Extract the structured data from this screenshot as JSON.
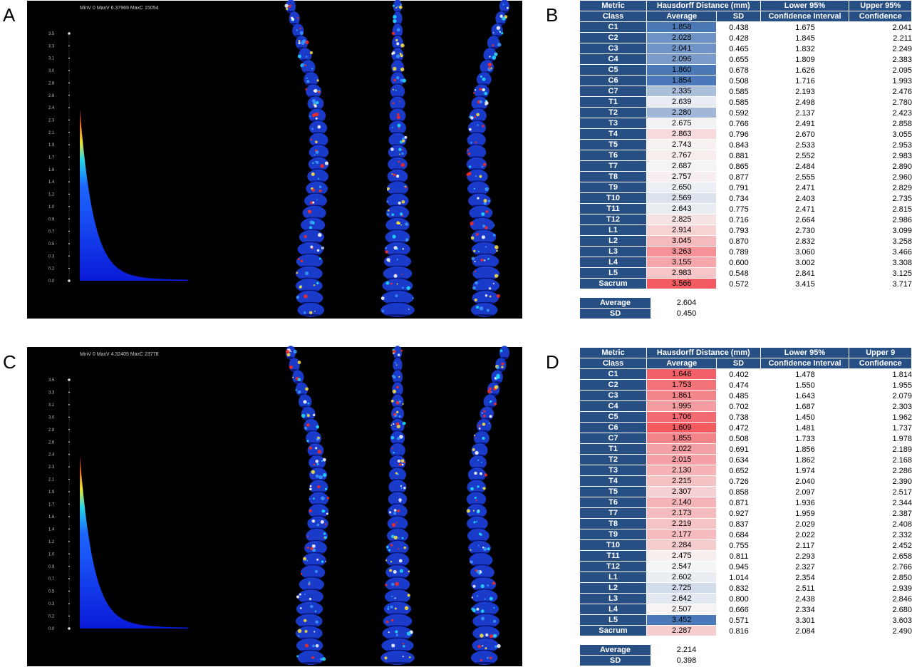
{
  "panels": {
    "A": {
      "letter": "A",
      "header": "MinV 0 MaxV 6.37969 MaxC 15054",
      "scale_labels": [
        "3.5",
        "3.3",
        "3.1",
        "3.0",
        "2.8",
        "2.6",
        "2.4",
        "2.3",
        "2.1",
        "1.9",
        "1.7",
        "1.6",
        "1.4",
        "1.2",
        "1.0",
        "0.9",
        "0.7",
        "0.5",
        "0.3",
        "0.2",
        "0.0"
      ]
    },
    "B": {
      "letter": "B",
      "headers": {
        "metric": "Metric",
        "hausdorff": "Hausdorff Distance (mm)",
        "lower": "Lower 95%",
        "upper": "Upper 95%",
        "class": "Class",
        "average": "Average",
        "sd": "SD",
        "lower2": "Confidence Interval",
        "upper2": "Confidence"
      },
      "rows": [
        {
          "cls": "C1",
          "avg": "1.858",
          "sd": "0.438",
          "lo": "1.675",
          "up": "2.041"
        },
        {
          "cls": "C2",
          "avg": "2.028",
          "sd": "0.428",
          "lo": "1.845",
          "up": "2.211"
        },
        {
          "cls": "C3",
          "avg": "2.041",
          "sd": "0.465",
          "lo": "1.832",
          "up": "2.249"
        },
        {
          "cls": "C4",
          "avg": "2.096",
          "sd": "0.655",
          "lo": "1.809",
          "up": "2.383"
        },
        {
          "cls": "C5",
          "avg": "1.860",
          "sd": "0.678",
          "lo": "1.626",
          "up": "2.095"
        },
        {
          "cls": "C6",
          "avg": "1.854",
          "sd": "0.508",
          "lo": "1.716",
          "up": "1.993"
        },
        {
          "cls": "C7",
          "avg": "2.335",
          "sd": "0.585",
          "lo": "2.193",
          "up": "2.476"
        },
        {
          "cls": "T1",
          "avg": "2.639",
          "sd": "0.585",
          "lo": "2.498",
          "up": "2.780"
        },
        {
          "cls": "T2",
          "avg": "2.280",
          "sd": "0.592",
          "lo": "2.137",
          "up": "2.423"
        },
        {
          "cls": "T3",
          "avg": "2.675",
          "sd": "0.766",
          "lo": "2.491",
          "up": "2.858"
        },
        {
          "cls": "T4",
          "avg": "2.863",
          "sd": "0.796",
          "lo": "2.670",
          "up": "3.055"
        },
        {
          "cls": "T5",
          "avg": "2.743",
          "sd": "0.843",
          "lo": "2.533",
          "up": "2.953"
        },
        {
          "cls": "T6",
          "avg": "2.767",
          "sd": "0.881",
          "lo": "2.552",
          "up": "2.983"
        },
        {
          "cls": "T7",
          "avg": "2.687",
          "sd": "0.865",
          "lo": "2.484",
          "up": "2.890"
        },
        {
          "cls": "T8",
          "avg": "2.757",
          "sd": "0.877",
          "lo": "2.555",
          "up": "2.960"
        },
        {
          "cls": "T9",
          "avg": "2.650",
          "sd": "0.791",
          "lo": "2.471",
          "up": "2.829"
        },
        {
          "cls": "T10",
          "avg": "2.569",
          "sd": "0.734",
          "lo": "2.403",
          "up": "2.735"
        },
        {
          "cls": "T11",
          "avg": "2.643",
          "sd": "0.775",
          "lo": "2.471",
          "up": "2.815"
        },
        {
          "cls": "T12",
          "avg": "2.825",
          "sd": "0.716",
          "lo": "2.664",
          "up": "2.986"
        },
        {
          "cls": "L1",
          "avg": "2.914",
          "sd": "0.793",
          "lo": "2.730",
          "up": "3.099"
        },
        {
          "cls": "L2",
          "avg": "3.045",
          "sd": "0.870",
          "lo": "2.832",
          "up": "3.258"
        },
        {
          "cls": "L3",
          "avg": "3.263",
          "sd": "0.789",
          "lo": "3.060",
          "up": "3.466"
        },
        {
          "cls": "L4",
          "avg": "3.155",
          "sd": "0.600",
          "lo": "3.002",
          "up": "3.308"
        },
        {
          "cls": "L5",
          "avg": "2.983",
          "sd": "0.548",
          "lo": "2.841",
          "up": "3.125"
        },
        {
          "cls": "Sacrum",
          "avg": "3.566",
          "sd": "0.572",
          "lo": "3.415",
          "up": "3.717"
        }
      ],
      "summary": {
        "avg_label": "Average",
        "avg": "2.604",
        "sd_label": "SD",
        "sd": "0.450"
      }
    },
    "C": {
      "letter": "C",
      "header": "MinV 0 MaxV 4.32405 MaxC 23778",
      "scale_labels": [
        "3.5",
        "3.3",
        "3.1",
        "3.0",
        "2.8",
        "2.6",
        "2.4",
        "2.3",
        "2.1",
        "1.9",
        "1.7",
        "1.6",
        "1.4",
        "1.2",
        "1.0",
        "0.9",
        "0.7",
        "0.5",
        "0.3",
        "0.2",
        "0.0"
      ]
    },
    "D": {
      "letter": "D",
      "headers": {
        "metric": "Metric",
        "hausdorff": "Hausdorff Distance (mm)",
        "lower": "Lower 95%",
        "upper": "Upper 9",
        "class": "Class",
        "average": "Average",
        "sd": "SD",
        "lower2": "Confidence Interval",
        "upper2": "Confidence"
      },
      "rows": [
        {
          "cls": "C1",
          "avg": "1.646",
          "sd": "0.402",
          "lo": "1.478",
          "up": "1.814"
        },
        {
          "cls": "C2",
          "avg": "1.753",
          "sd": "0.474",
          "lo": "1.550",
          "up": "1.955"
        },
        {
          "cls": "C3",
          "avg": "1.861",
          "sd": "0.485",
          "lo": "1.643",
          "up": "2.079"
        },
        {
          "cls": "C4",
          "avg": "1.995",
          "sd": "0.702",
          "lo": "1.687",
          "up": "2.303"
        },
        {
          "cls": "C5",
          "avg": "1.706",
          "sd": "0.738",
          "lo": "1.450",
          "up": "1.962"
        },
        {
          "cls": "C6",
          "avg": "1.609",
          "sd": "0.472",
          "lo": "1.481",
          "up": "1.737"
        },
        {
          "cls": "C7",
          "avg": "1.855",
          "sd": "0.508",
          "lo": "1.733",
          "up": "1.978"
        },
        {
          "cls": "T1",
          "avg": "2.022",
          "sd": "0.691",
          "lo": "1.856",
          "up": "2.189"
        },
        {
          "cls": "T2",
          "avg": "2.015",
          "sd": "0.634",
          "lo": "1.862",
          "up": "2.168"
        },
        {
          "cls": "T3",
          "avg": "2.130",
          "sd": "0.652",
          "lo": "1.974",
          "up": "2.286"
        },
        {
          "cls": "T4",
          "avg": "2.215",
          "sd": "0.726",
          "lo": "2.040",
          "up": "2.390"
        },
        {
          "cls": "T5",
          "avg": "2.307",
          "sd": "0.858",
          "lo": "2.097",
          "up": "2.517"
        },
        {
          "cls": "T6",
          "avg": "2.140",
          "sd": "0.871",
          "lo": "1.936",
          "up": "2.344"
        },
        {
          "cls": "T7",
          "avg": "2.173",
          "sd": "0.927",
          "lo": "1.959",
          "up": "2.387"
        },
        {
          "cls": "T8",
          "avg": "2.219",
          "sd": "0.837",
          "lo": "2.029",
          "up": "2.408"
        },
        {
          "cls": "T9",
          "avg": "2.177",
          "sd": "0.684",
          "lo": "2.022",
          "up": "2.332"
        },
        {
          "cls": "T10",
          "avg": "2.284",
          "sd": "0.755",
          "lo": "2.117",
          "up": "2.452"
        },
        {
          "cls": "T11",
          "avg": "2.475",
          "sd": "0.811",
          "lo": "2.293",
          "up": "2.658"
        },
        {
          "cls": "T12",
          "avg": "2.547",
          "sd": "0.945",
          "lo": "2.327",
          "up": "2.766"
        },
        {
          "cls": "L1",
          "avg": "2.602",
          "sd": "1.014",
          "lo": "2.354",
          "up": "2.850"
        },
        {
          "cls": "L2",
          "avg": "2.725",
          "sd": "0.832",
          "lo": "2.511",
          "up": "2.939"
        },
        {
          "cls": "L3",
          "avg": "2.642",
          "sd": "0.800",
          "lo": "2.438",
          "up": "2.846"
        },
        {
          "cls": "L4",
          "avg": "2.507",
          "sd": "0.666",
          "lo": "2.334",
          "up": "2.680"
        },
        {
          "cls": "L5",
          "avg": "3.452",
          "sd": "0.571",
          "lo": "3.301",
          "up": "3.603"
        },
        {
          "cls": "Sacrum",
          "avg": "2.287",
          "sd": "0.816",
          "lo": "2.084",
          "up": "2.490"
        }
      ],
      "summary": {
        "avg_label": "Average",
        "avg": "2.214",
        "sd_label": "SD",
        "sd": "0.398"
      }
    }
  },
  "colors": {
    "header_blue": "#274f84",
    "viz_background": "#000000",
    "heat_low": "#4a78b8",
    "heat_mid": "#f7f7f7",
    "heat_high": "#f25b62",
    "spine_base": "#1c3fd6"
  }
}
